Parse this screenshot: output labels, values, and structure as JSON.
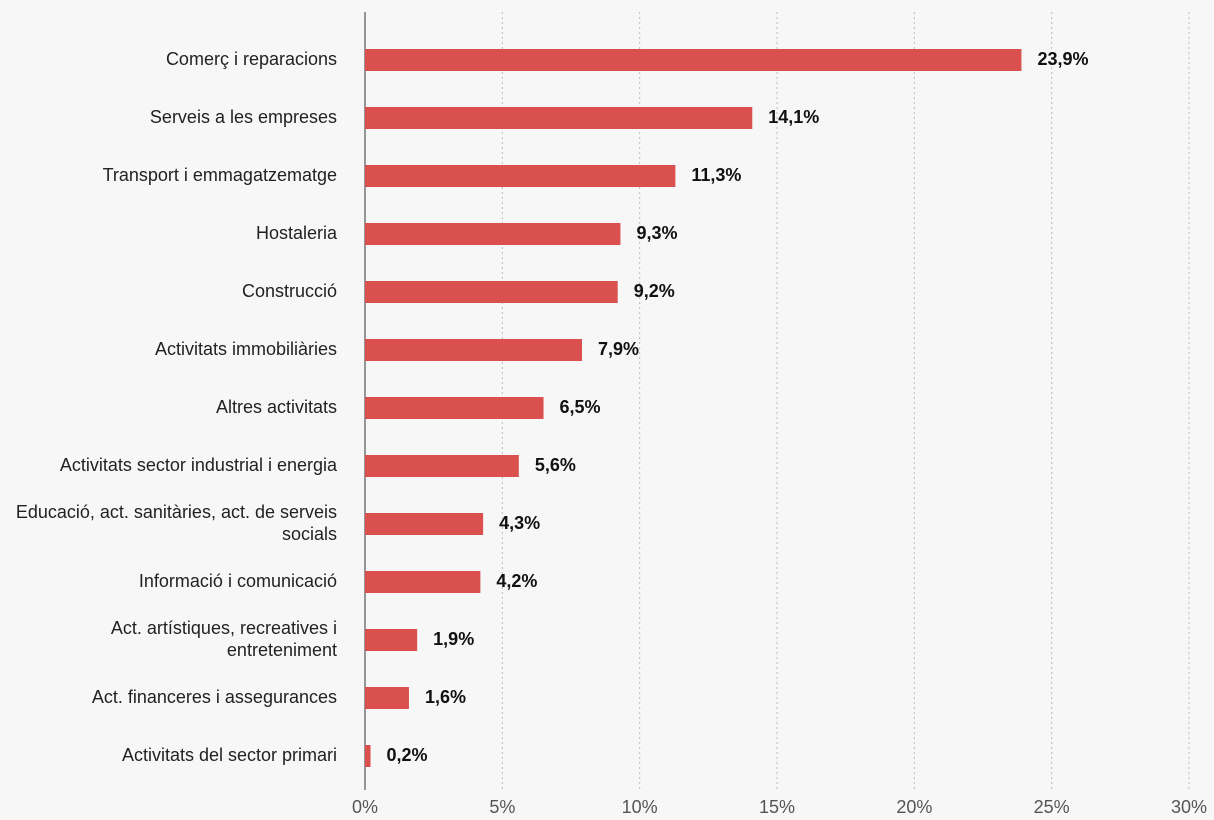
{
  "chart_data": {
    "type": "bar",
    "orientation": "horizontal",
    "categories": [
      "Comerç i reparacions",
      "Serveis a les empreses",
      "Transport i emmagatzematge",
      "Hostaleria",
      "Construcció",
      "Activitats immobiliàries",
      "Altres activitats",
      "Activitats sector industrial i energia",
      "Educació, act. sanitàries, act. de serveis socials",
      "Informació i comunicació",
      "Act. artístiques, recreatives i entreteniment",
      "Act. financeres i assegurances",
      "Activitats del sector primari"
    ],
    "values": [
      23.9,
      14.1,
      11.3,
      9.3,
      9.2,
      7.9,
      6.5,
      5.6,
      4.3,
      4.2,
      1.9,
      1.6,
      0.2
    ],
    "value_labels": [
      "23,9%",
      "14,1%",
      "11,3%",
      "9,3%",
      "9,2%",
      "7,9%",
      "6,5%",
      "5,6%",
      "4,3%",
      "4,2%",
      "1,9%",
      "1,6%",
      "0,2%"
    ],
    "color": "#d9504f",
    "xlim": [
      0,
      30
    ],
    "xticks": [
      {
        "value": 0,
        "label": "0%"
      },
      {
        "value": 5,
        "label": "5%"
      },
      {
        "value": 10,
        "label": "10%"
      },
      {
        "value": 15,
        "label": "15%"
      },
      {
        "value": 20,
        "label": "20%"
      },
      {
        "value": 25,
        "label": "25%"
      },
      {
        "value": 30,
        "label": "30%"
      }
    ],
    "grid": true
  }
}
